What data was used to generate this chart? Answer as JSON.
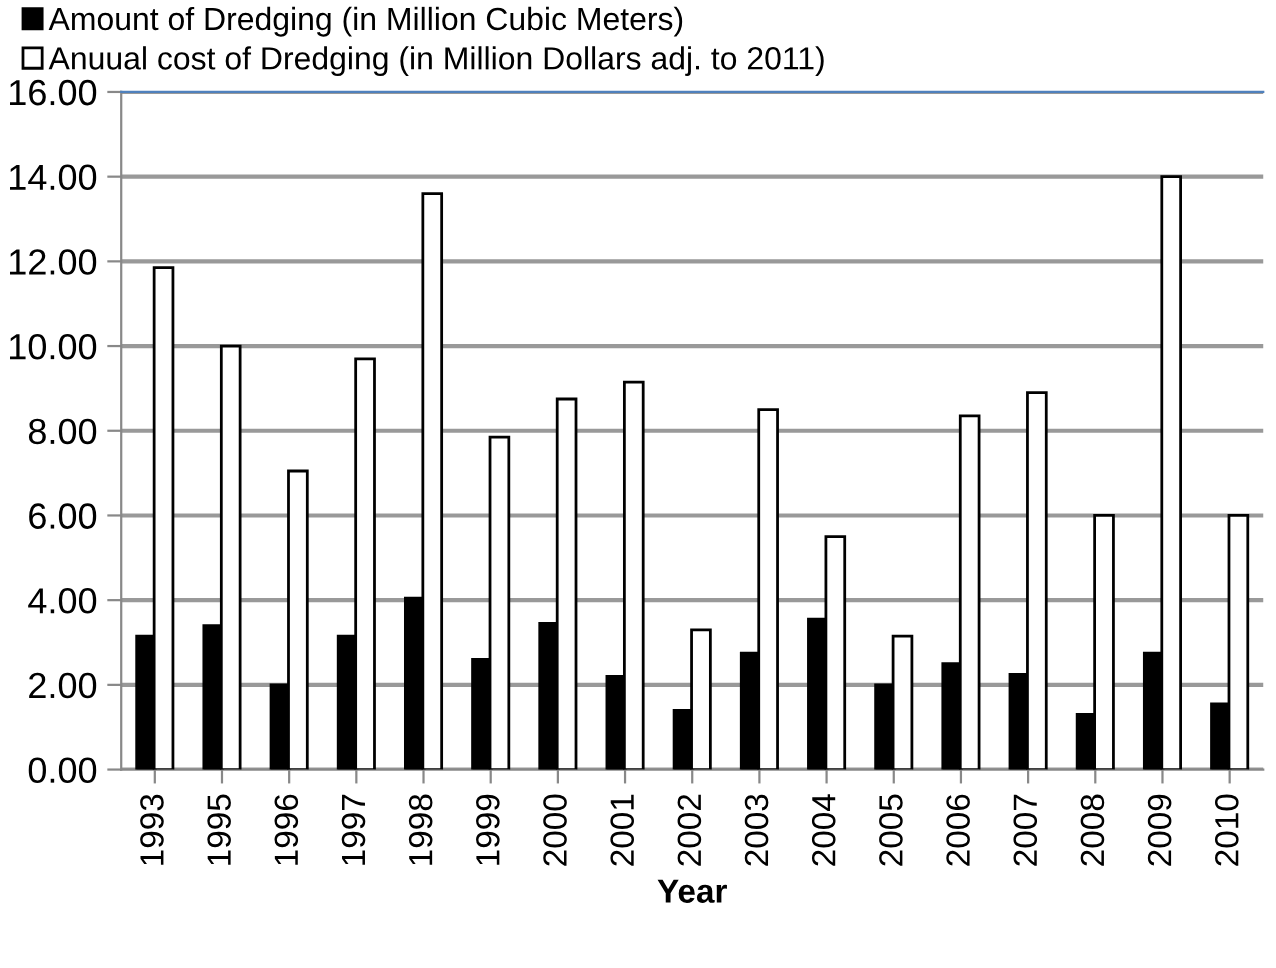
{
  "chart_data": {
    "type": "bar",
    "xlabel": "Year",
    "categories": [
      "1993",
      "1995",
      "1996",
      "1997",
      "1998",
      "1999",
      "2000",
      "2001",
      "2002",
      "2003",
      "2004",
      "2005",
      "2006",
      "2007",
      "2008",
      "2009",
      "2010"
    ],
    "series": [
      {
        "name": "Amount of Dredging (in Million Cubic Meters)",
        "color": "#000000",
        "values": [
          3.15,
          3.4,
          2.0,
          3.15,
          4.05,
          2.6,
          3.45,
          2.2,
          1.4,
          2.75,
          3.55,
          2.0,
          2.5,
          2.25,
          1.3,
          2.75,
          1.55
        ]
      },
      {
        "name": "Anuual cost of Dredging (in Million Dollars adj. to 2011)",
        "color": "#ffffff",
        "values": [
          11.85,
          10.0,
          7.05,
          9.7,
          13.6,
          7.85,
          8.75,
          9.15,
          3.3,
          8.5,
          5.5,
          3.15,
          8.35,
          8.9,
          6.0,
          14.0,
          6.0
        ]
      }
    ],
    "ylim": [
      0,
      16
    ],
    "yticks": [
      {
        "value": 0,
        "label": "0.00"
      },
      {
        "value": 2,
        "label": "2.00"
      },
      {
        "value": 4,
        "label": "4.00"
      },
      {
        "value": 6,
        "label": "6.00"
      },
      {
        "value": 8,
        "label": "8.00"
      },
      {
        "value": 10,
        "label": "10.00"
      },
      {
        "value": 12,
        "label": "12.00"
      },
      {
        "value": 14,
        "label": "14.00"
      },
      {
        "value": 16,
        "label": "16.00"
      }
    ],
    "grid": "y",
    "legend": "top left"
  }
}
